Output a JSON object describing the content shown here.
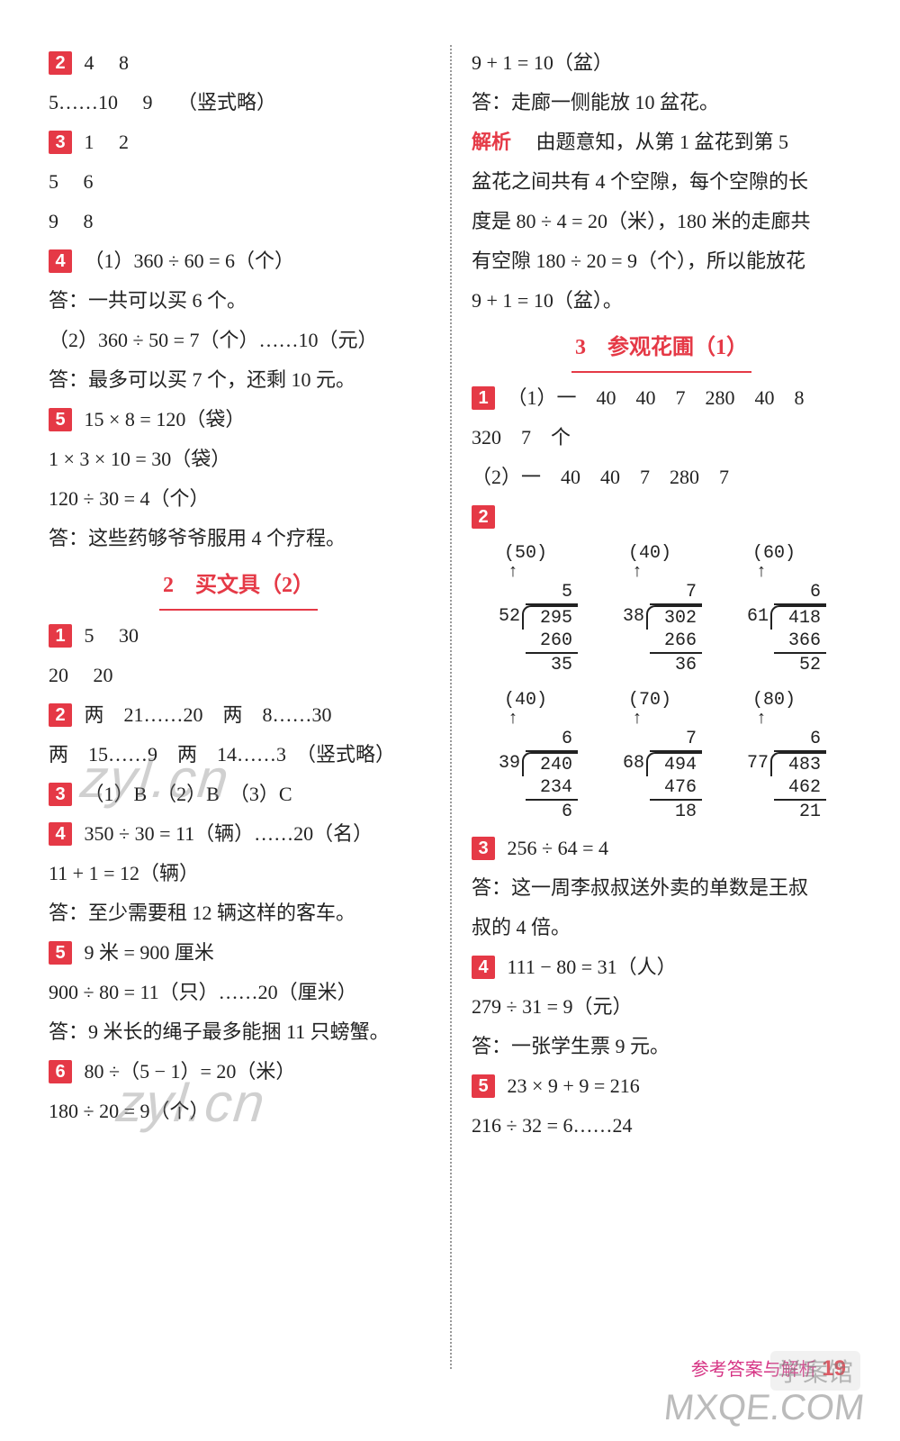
{
  "left": {
    "q2": {
      "a": "4",
      "b": "8",
      "c": "5……10",
      "d": "9",
      "e": "（竖式略）"
    },
    "q3": {
      "r1a": "1",
      "r1b": "2",
      "r2a": "5",
      "r2b": "6",
      "r3a": "9",
      "r3b": "8"
    },
    "q4": {
      "l1": "（1）360 ÷ 60 = 6（个）",
      "l2": "答：一共可以买 6 个。",
      "l3": "（2）360 ÷ 50 = 7（个）……10（元）",
      "l4": "答：最多可以买 7 个，还剩 10 元。"
    },
    "q5": {
      "l1": "15 × 8 = 120（袋）",
      "l2": "1 × 3 × 10 = 30（袋）",
      "l3": "120 ÷ 30 = 4（个）",
      "l4": "答：这些药够爷爷服用 4 个疗程。"
    },
    "sec2_title": "2　买文具（2）",
    "s2q1": {
      "a": "5",
      "b": "30",
      "c": "20",
      "d": "20"
    },
    "s2q2": {
      "l1": "两　21……20　两　8……30",
      "l2": "两　15……9　两　14……3　（竖式略）"
    },
    "s2q3": "（1）B　（2）B　（3）C",
    "s2q4": {
      "l1": "350 ÷ 30 = 11（辆）……20（名）",
      "l2": "11 + 1 = 12（辆）",
      "l3": "答：至少需要租 12 辆这样的客车。"
    },
    "s2q5": {
      "l1": "9 米 = 900 厘米",
      "l2": "900 ÷ 80 = 11（只）……20（厘米）",
      "l3": "答：9 米长的绳子最多能捆 11 只螃蟹。"
    },
    "s2q6": {
      "l1": "80 ÷（5 − 1）= 20（米）",
      "l2": "180 ÷ 20 = 9（个）"
    }
  },
  "right": {
    "cont": {
      "l1": "9 + 1 = 10（盆）",
      "l2": "答：走廊一侧能放 10 盆花。"
    },
    "jiexi_label": "解析",
    "jiexi_text1": "　由题意知，从第 1 盆花到第 5",
    "jiexi_text2": "盆花之间共有 4 个空隙，每个空隙的长",
    "jiexi_text3": "度是 80 ÷ 4 = 20（米），180 米的走廊共",
    "jiexi_text4": "有空隙 180 ÷ 20 = 9（个），所以能放花",
    "jiexi_text5": "9 + 1 = 10（盆）。",
    "sec3_title": "3　参观花圃（1）",
    "s3q1": {
      "l1": "（1）一　40　40　7　280　40　8",
      "l2": "320　7　个",
      "l3": "（2）一　40　40　7　280　7"
    },
    "s3q2": {
      "p1": {
        "est": "(50)",
        "divisor": "52",
        "dividend": "295",
        "quot": "5",
        "sub": "260",
        "rem": "35"
      },
      "p2": {
        "est": "(40)",
        "divisor": "38",
        "dividend": "302",
        "quot": "7",
        "sub": "266",
        "rem": "36"
      },
      "p3": {
        "est": "(60)",
        "divisor": "61",
        "dividend": "418",
        "quot": "6",
        "sub": "366",
        "rem": "52"
      },
      "p4": {
        "est": "(40)",
        "divisor": "39",
        "dividend": "240",
        "quot": "6",
        "sub": "234",
        "rem": "6"
      },
      "p5": {
        "est": "(70)",
        "divisor": "68",
        "dividend": "494",
        "quot": "7",
        "sub": "476",
        "rem": "18"
      },
      "p6": {
        "est": "(80)",
        "divisor": "77",
        "dividend": "483",
        "quot": "6",
        "sub": "462",
        "rem": "21"
      }
    },
    "s3q3": {
      "l1": "256 ÷ 64 = 4",
      "l2": "答：这一周李叔叔送外卖的单数是王叔",
      "l3": "叔的 4 倍。"
    },
    "s3q4": {
      "l1": "111 − 80 = 31（人）",
      "l2": "279 ÷ 31 = 9（元）",
      "l3": "答：一张学生票 9 元。"
    },
    "s3q5": {
      "l1": "23 × 9 + 9 = 216",
      "l2": "216 ÷ 32 = 6……24"
    }
  },
  "footer": {
    "label": "参考答案与解析",
    "page": "19"
  },
  "watermarks": {
    "w1": "zyl.cn",
    "w2": "zyl.cn",
    "logo": "学案馆",
    "site": "MXQE.COM"
  },
  "nums": {
    "n1": "1",
    "n2": "2",
    "n3": "3",
    "n4": "4",
    "n5": "5",
    "n6": "6"
  }
}
